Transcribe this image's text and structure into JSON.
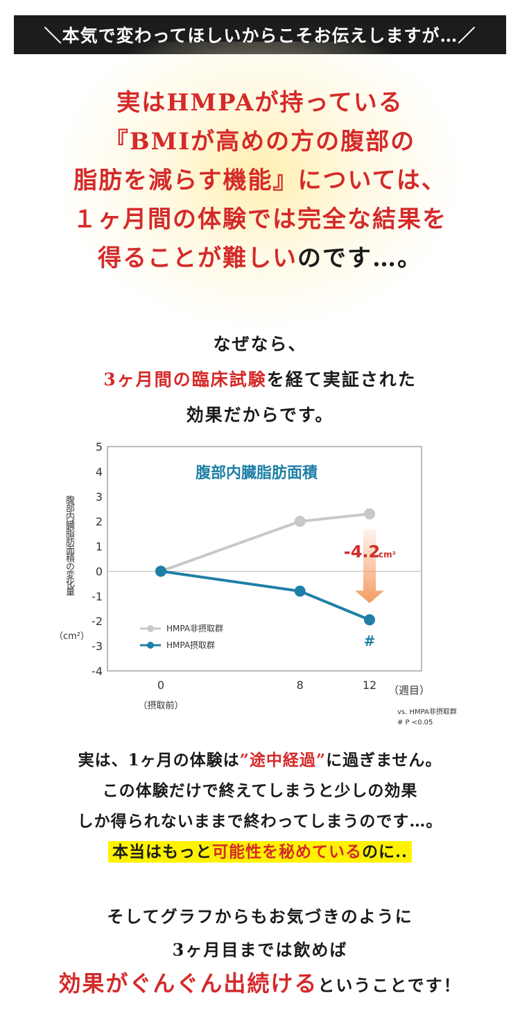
{
  "banner": "＼本気で変わってほしいからこそお伝えしますが…／",
  "headline": {
    "line1": "実はHMPAが持っている",
    "line2": "『BMIが高めの方の腹部の",
    "line3": "脂肪を減らす機能』については、",
    "line4": "１ヶ月間の体験では完全な結果を",
    "line5_red": "得ることが難しい",
    "line5_dark": "のです…。"
  },
  "reason": {
    "line1": "なぜなら、",
    "line2_red": "3ヶ月間の臨床試験",
    "line2_rest": "を経て実証された",
    "line3": "効果だからです。"
  },
  "chart_data": {
    "type": "line",
    "title": "腹部内臓脂肪面積",
    "ylabel": "腹部内臓脂肪面積の変化量",
    "yunit": "（cm²）",
    "xlabel": "（週目）",
    "x": [
      0,
      8,
      12
    ],
    "x_sublabel": "（摂取前）",
    "ylim": [
      -4,
      5
    ],
    "yticks": [
      5,
      4,
      3,
      2,
      1,
      0,
      -1,
      -2,
      -3,
      -4
    ],
    "series": [
      {
        "name": "HMPA非摂取群",
        "values": [
          0,
          2.0,
          2.3
        ],
        "color": "#c8c8c8"
      },
      {
        "name": "HMPA摂取群",
        "values": [
          0,
          -0.8,
          -1.95
        ],
        "color": "#1f7fa6"
      }
    ],
    "annotation_value": "-4.2",
    "annotation_unit": "cm²",
    "significance_mark": "#",
    "footnote1": "vs. HMPA非摂取群",
    "footnote2": "# P <0.05",
    "legend_position": "bottom-left",
    "grid": false
  },
  "p1": {
    "line1_a": "実は、1ヶ月の体験は",
    "line1_red": "”途中経過”",
    "line1_b": "に過ぎません。",
    "line2": "この体験だけで終えてしまうと少しの効果",
    "line3": "しか得られないままで終わってしまうのです…。",
    "line4_a": "本当はもっと",
    "line4_red": "可能性を秘めている",
    "line4_b": "のに..",
    "highlight_color": "#fff200"
  },
  "p2": {
    "line1": "そしてグラフからもお気づきのように",
    "line2": "3ヶ月目までは飲めば",
    "line3_red": "効果がぐんぐん出続ける",
    "line3_rest": "ということです！"
  }
}
